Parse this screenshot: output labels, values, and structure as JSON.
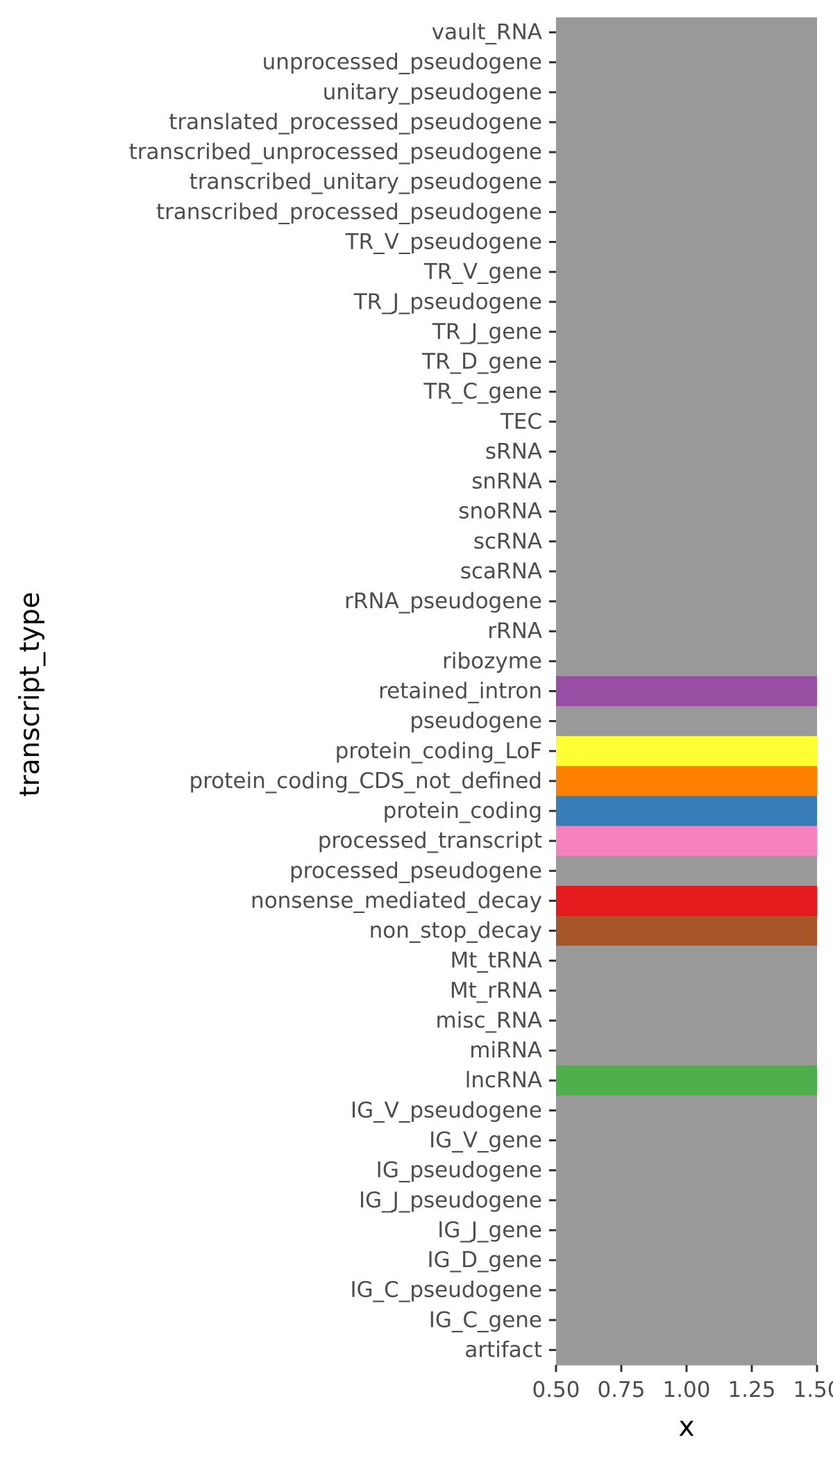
{
  "chart_data": {
    "type": "heatmap",
    "title": "",
    "xlabel": "x",
    "ylabel": "transcript_type",
    "xlim": [
      0.5,
      1.5
    ],
    "x_ticks": [
      "0.50",
      "0.75",
      "1.00",
      "1.25",
      "1.50"
    ],
    "grid": true,
    "legend": "none",
    "default_color": "#999999",
    "categories": [
      "vault_RNA",
      "unprocessed_pseudogene",
      "unitary_pseudogene",
      "translated_processed_pseudogene",
      "transcribed_unprocessed_pseudogene",
      "transcribed_unitary_pseudogene",
      "transcribed_processed_pseudogene",
      "TR_V_pseudogene",
      "TR_V_gene",
      "TR_J_pseudogene",
      "TR_J_gene",
      "TR_D_gene",
      "TR_C_gene",
      "TEC",
      "sRNA",
      "snRNA",
      "snoRNA",
      "scRNA",
      "scaRNA",
      "rRNA_pseudogene",
      "rRNA",
      "ribozyme",
      "retained_intron",
      "pseudogene",
      "protein_coding_LoF",
      "protein_coding_CDS_not_defined",
      "protein_coding",
      "processed_transcript",
      "processed_pseudogene",
      "nonsense_mediated_decay",
      "non_stop_decay",
      "Mt_tRNA",
      "Mt_rRNA",
      "misc_RNA",
      "miRNA",
      "lncRNA",
      "IG_V_pseudogene",
      "IG_V_gene",
      "IG_pseudogene",
      "IG_J_pseudogene",
      "IG_J_gene",
      "IG_D_gene",
      "IG_C_pseudogene",
      "IG_C_gene",
      "artifact"
    ],
    "highlight_colors": {
      "retained_intron": "#984EA3",
      "protein_coding_LoF": "#FFFF33",
      "protein_coding_CDS_not_defined": "#FF7F00",
      "protein_coding": "#377EB8",
      "processed_transcript": "#F781BF",
      "nonsense_mediated_decay": "#E41A1C",
      "non_stop_decay": "#A65628",
      "lncRNA": "#4DAF4A"
    }
  }
}
